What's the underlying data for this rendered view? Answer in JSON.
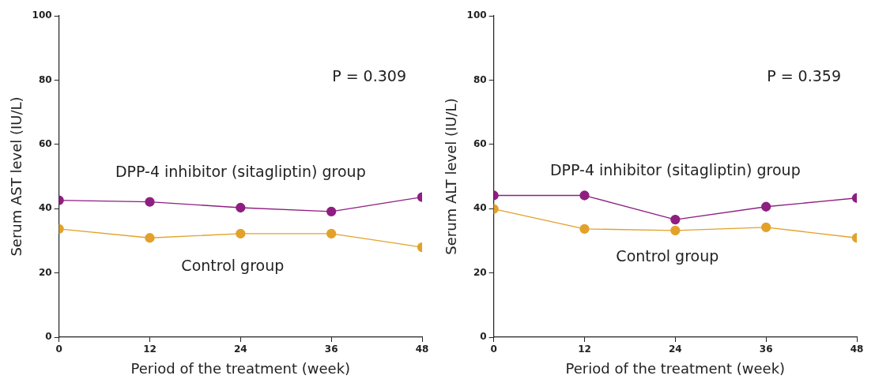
{
  "chart_data": [
    {
      "type": "line",
      "xlabel": "Period of the treatment (week)",
      "ylabel": "Serum AST level (IU/L)",
      "x": [
        0,
        12,
        24,
        36,
        48
      ],
      "xlim": [
        0,
        48
      ],
      "xticks": [
        0,
        12,
        24,
        36,
        48
      ],
      "ylim": [
        0,
        100
      ],
      "yticks": [
        0,
        20,
        40,
        60,
        80,
        100
      ],
      "grid": false,
      "legend": false,
      "marker": "circle",
      "annotations": [
        "P = 0.309"
      ],
      "series": [
        {
          "name": "DPP-4 inhibitor (sitagliptin) group",
          "color": "#8e1f80",
          "values": [
            42.6,
            42.1,
            40.3,
            39.1,
            43.6
          ]
        },
        {
          "name": "Control group",
          "color": "#e3a12a",
          "values": [
            33.7,
            30.9,
            32.2,
            32.2,
            28.0
          ]
        }
      ]
    },
    {
      "type": "line",
      "xlabel": "Period of the treatment (week)",
      "ylabel": "Serum ALT level (IU/L)",
      "x": [
        0,
        12,
        24,
        36,
        48
      ],
      "xlim": [
        0,
        48
      ],
      "xticks": [
        0,
        12,
        24,
        36,
        48
      ],
      "ylim": [
        0,
        100
      ],
      "yticks": [
        0,
        20,
        40,
        60,
        80,
        100
      ],
      "grid": false,
      "legend": false,
      "marker": "circle",
      "annotations": [
        "P = 0.359"
      ],
      "series": [
        {
          "name": "DPP-4 inhibitor (sitagliptin) group",
          "color": "#8e1f80",
          "values": [
            44.1,
            44.1,
            36.6,
            40.6,
            43.3
          ]
        },
        {
          "name": "Control group",
          "color": "#e3a12a",
          "values": [
            39.9,
            33.7,
            33.2,
            34.2,
            30.9
          ]
        }
      ]
    }
  ]
}
